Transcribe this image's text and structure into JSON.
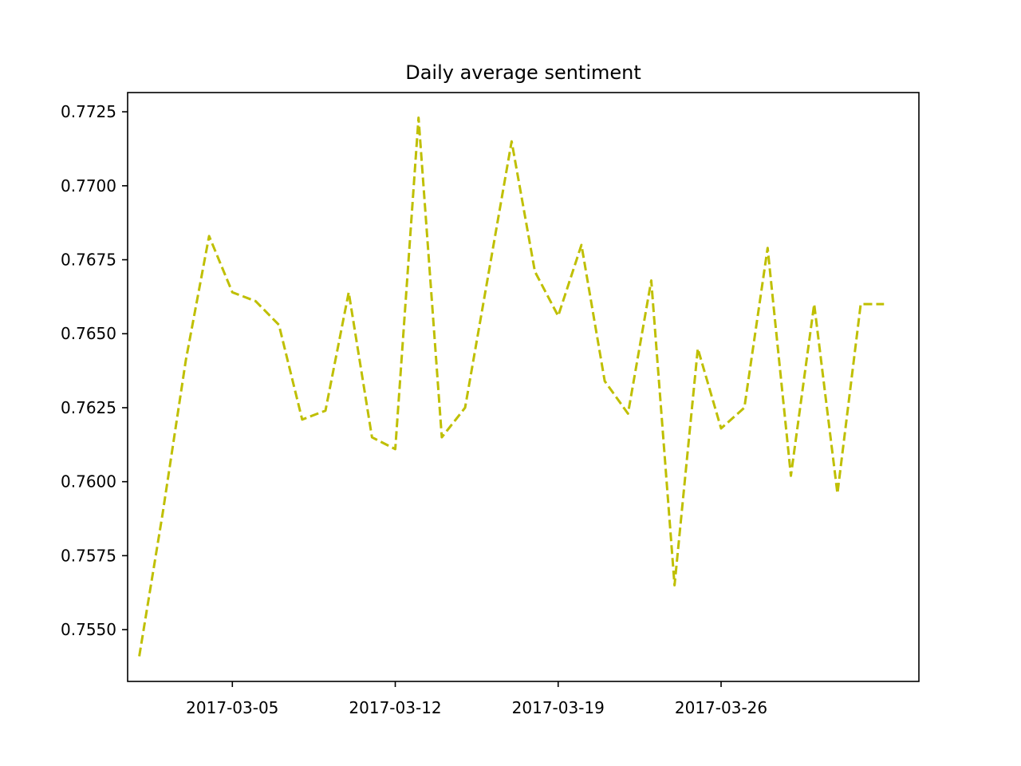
{
  "chart_data": {
    "type": "line",
    "title": "Daily average sentiment",
    "xlabel": "",
    "ylabel": "",
    "x_ticks": [
      "2017-03-05",
      "2017-03-12",
      "2017-03-19",
      "2017-03-26"
    ],
    "y_ticks": [
      "0.7550",
      "0.7575",
      "0.7600",
      "0.7625",
      "0.7650",
      "0.7675",
      "0.7700",
      "0.7725"
    ],
    "xlim": [
      "2017-02-28 12:00",
      "2017-04-03 12:00"
    ],
    "ylim": [
      0.75325,
      0.77315
    ],
    "grid": false,
    "line_style": "dashed",
    "line_color": "#bfbf00",
    "series": [
      {
        "x": [
          "2017-03-01",
          "2017-03-02",
          "2017-03-03",
          "2017-03-04",
          "2017-03-05",
          "2017-03-06",
          "2017-03-07",
          "2017-03-08",
          "2017-03-09",
          "2017-03-10",
          "2017-03-11",
          "2017-03-12",
          "2017-03-13",
          "2017-03-14",
          "2017-03-15",
          "2017-03-16",
          "2017-03-17",
          "2017-03-18",
          "2017-03-19",
          "2017-03-20",
          "2017-03-21",
          "2017-03-22",
          "2017-03-23",
          "2017-03-24",
          "2017-03-25",
          "2017-03-26",
          "2017-03-27",
          "2017-03-28",
          "2017-03-29",
          "2017-03-30",
          "2017-03-31",
          "2017-04-01",
          "2017-04-02"
        ],
        "y": [
          0.7541,
          0.7589,
          0.7641,
          0.7683,
          0.7664,
          0.7661,
          0.7653,
          0.7621,
          0.7624,
          0.7664,
          0.7615,
          0.7611,
          0.7723,
          0.7615,
          0.7625,
          0.767,
          0.7715,
          0.7671,
          0.7656,
          0.768,
          0.7634,
          0.7623,
          0.7668,
          0.7565,
          0.7645,
          0.7618,
          0.7625,
          0.7679,
          0.7602,
          0.766,
          0.7596,
          0.766,
          0.766
        ]
      }
    ]
  }
}
